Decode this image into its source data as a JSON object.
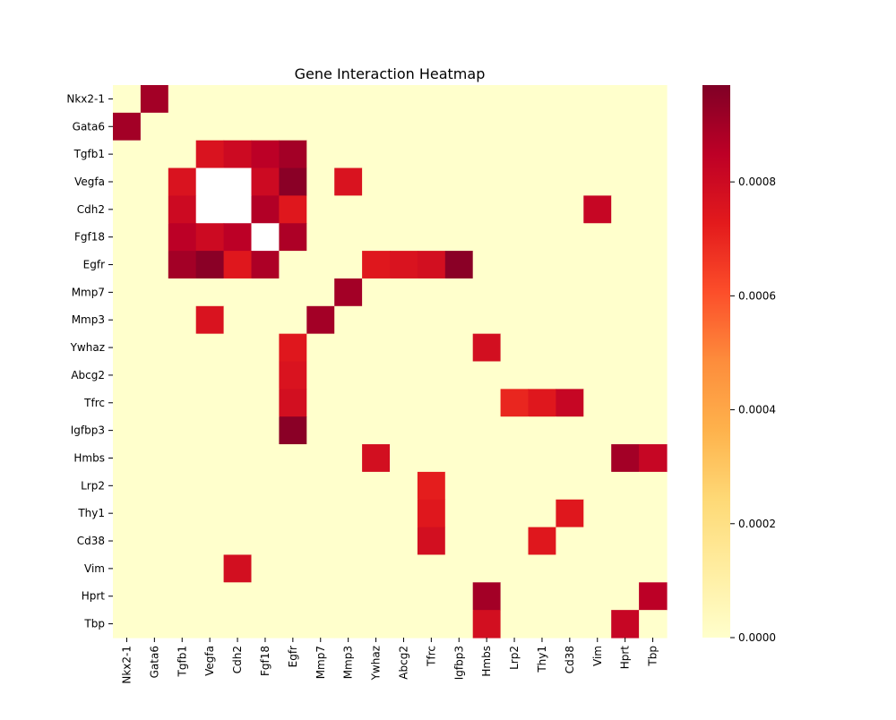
{
  "chart_data": {
    "type": "heatmap",
    "title": "Gene Interaction Heatmap",
    "xlabel": "",
    "ylabel": "",
    "rows": [
      "Nkx2-1",
      "Gata6",
      "Tgfb1",
      "Vegfa",
      "Cdh2",
      "Fgf18",
      "Egfr",
      "Mmp7",
      "Mmp3",
      "Ywhaz",
      "Abcg2",
      "Tfrc",
      "Igfbp3",
      "Hmbs",
      "Lrp2",
      "Thy1",
      "Cd38",
      "Vim",
      "Hprt",
      "Tbp"
    ],
    "columns": [
      "Nkx2-1",
      "Gata6",
      "Tgfb1",
      "Vegfa",
      "Cdh2",
      "Fgf18",
      "Egfr",
      "Mmp7",
      "Mmp3",
      "Ywhaz",
      "Abcg2",
      "Tfrc",
      "Igfbp3",
      "Hmbs",
      "Lrp2",
      "Thy1",
      "Cd38",
      "Vim",
      "Hprt",
      "Tbp"
    ],
    "values": [
      [
        0,
        0.0009,
        0,
        0,
        0,
        0,
        0,
        0,
        0,
        0,
        0,
        0,
        0,
        0,
        0,
        0,
        0,
        0,
        0,
        0
      ],
      [
        0.0009,
        0,
        0,
        0,
        0,
        0,
        0,
        0,
        0,
        0,
        0,
        0,
        0,
        0,
        0,
        0,
        0,
        0,
        0,
        0
      ],
      [
        0,
        0,
        0,
        0.00076,
        0.0008,
        0.00085,
        0.0009,
        0,
        0,
        0,
        0,
        0,
        0,
        0,
        0,
        0,
        0,
        0,
        0,
        0
      ],
      [
        0,
        0,
        0.00076,
        null,
        null,
        0.0008,
        0.00095,
        0,
        0.00076,
        0,
        0,
        0,
        0,
        0,
        0,
        0,
        0,
        0,
        0,
        0
      ],
      [
        0,
        0,
        0.0008,
        null,
        null,
        0.00087,
        0.00074,
        0,
        0,
        0,
        0,
        0,
        0,
        0,
        0,
        0,
        0,
        0.00082,
        0,
        0
      ],
      [
        0,
        0,
        0.00085,
        0.0008,
        0.00085,
        null,
        0.00088,
        0,
        0,
        0,
        0,
        0,
        0,
        0,
        0,
        0,
        0,
        0,
        0,
        0
      ],
      [
        0,
        0,
        0.0009,
        0.00095,
        0.00074,
        0.00088,
        0,
        0,
        0,
        0.00074,
        0.00076,
        0.00078,
        0.00095,
        0,
        0,
        0,
        0,
        0,
        0,
        0
      ],
      [
        0,
        0,
        0,
        0,
        0,
        0,
        0,
        0,
        0.0009,
        0,
        0,
        0,
        0,
        0,
        0,
        0,
        0,
        0,
        0,
        0
      ],
      [
        0,
        0,
        0,
        0.00076,
        0,
        0,
        0,
        0.0009,
        0,
        0,
        0,
        0,
        0,
        0,
        0,
        0,
        0,
        0,
        0,
        0
      ],
      [
        0,
        0,
        0,
        0,
        0,
        0,
        0.00074,
        0,
        0,
        0,
        0,
        0,
        0,
        0.00078,
        0,
        0,
        0,
        0,
        0,
        0
      ],
      [
        0,
        0,
        0,
        0,
        0,
        0,
        0.00076,
        0,
        0,
        0,
        0,
        0,
        0,
        0,
        0,
        0,
        0,
        0,
        0,
        0
      ],
      [
        0,
        0,
        0,
        0,
        0,
        0,
        0.00078,
        0,
        0,
        0,
        0,
        0,
        0,
        0,
        0.0007,
        0.00074,
        0.00082,
        0,
        0,
        0
      ],
      [
        0,
        0,
        0,
        0,
        0,
        0,
        0.00095,
        0,
        0,
        0,
        0,
        0,
        0,
        0,
        0,
        0,
        0,
        0,
        0,
        0
      ],
      [
        0,
        0,
        0,
        0,
        0,
        0,
        0,
        0,
        0,
        0.00078,
        0,
        0,
        0,
        0,
        0,
        0,
        0,
        0,
        0.0009,
        0.00082
      ],
      [
        0,
        0,
        0,
        0,
        0,
        0,
        0,
        0,
        0,
        0,
        0,
        0.00072,
        0,
        0,
        0,
        0,
        0,
        0,
        0,
        0
      ],
      [
        0,
        0,
        0,
        0,
        0,
        0,
        0,
        0,
        0,
        0,
        0,
        0.00074,
        0,
        0,
        0,
        0,
        0.00074,
        0,
        0,
        0
      ],
      [
        0,
        0,
        0,
        0,
        0,
        0,
        0,
        0,
        0,
        0,
        0,
        0.00078,
        0,
        0,
        0,
        0.00074,
        0,
        0,
        0,
        0
      ],
      [
        0,
        0,
        0,
        0,
        0.00078,
        0,
        0,
        0,
        0,
        0,
        0,
        0,
        0,
        0,
        0,
        0,
        0,
        0,
        0,
        0
      ],
      [
        0,
        0,
        0,
        0,
        0,
        0,
        0,
        0,
        0,
        0,
        0,
        0,
        0,
        0.0009,
        0,
        0,
        0,
        0,
        0,
        0.00085
      ],
      [
        0,
        0,
        0,
        0,
        0,
        0,
        0,
        0,
        0,
        0,
        0,
        0,
        0,
        0.00078,
        0,
        0,
        0,
        0,
        0.00082,
        0
      ]
    ],
    "colorbar": {
      "colormap": "YlOrRd",
      "min": 0,
      "max": 0.00097,
      "ticks": [
        0,
        0.0002,
        0.0004,
        0.0006,
        0.0008
      ],
      "tick_labels": [
        "0.0000",
        "0.0002",
        "0.0004",
        "0.0006",
        "0.0008"
      ]
    },
    "missing_color": "#ffffff"
  }
}
